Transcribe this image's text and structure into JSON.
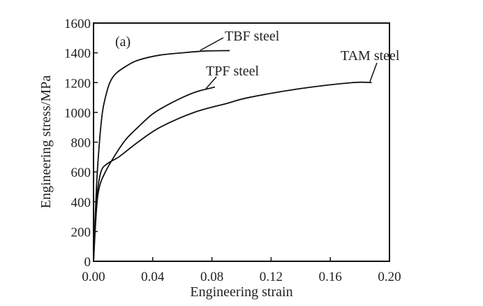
{
  "chart_data": {
    "type": "line",
    "panel_label": "(a)",
    "title": "",
    "xlabel": "Engineering strain",
    "ylabel": "Engineering stress/MPa",
    "xlim": [
      0,
      0.2
    ],
    "ylim": [
      0,
      1600
    ],
    "xticks": [
      "0.00",
      "0.04",
      "0.08",
      "0.12",
      "0.16",
      "0.20"
    ],
    "yticks": [
      "0",
      "200",
      "400",
      "600",
      "800",
      "1000",
      "1200",
      "1400",
      "1600"
    ],
    "grid": false,
    "series": [
      {
        "name": "TBF steel",
        "x": [
          0,
          0.002,
          0.004,
          0.006,
          0.008,
          0.011,
          0.015,
          0.022,
          0.03,
          0.045,
          0.06,
          0.075,
          0.092
        ],
        "y": [
          0,
          500,
          800,
          1000,
          1100,
          1200,
          1260,
          1310,
          1350,
          1385,
          1400,
          1412,
          1415
        ]
      },
      {
        "name": "TPF steel",
        "x": [
          0,
          0.002,
          0.004,
          0.008,
          0.015,
          0.022,
          0.03,
          0.04,
          0.05,
          0.06,
          0.07,
          0.082
        ],
        "y": [
          0,
          350,
          500,
          600,
          720,
          820,
          900,
          990,
          1050,
          1100,
          1140,
          1170
        ]
      },
      {
        "name": "TAM steel",
        "x": [
          0,
          0.002,
          0.005,
          0.01,
          0.017,
          0.03,
          0.045,
          0.068,
          0.09,
          0.105,
          0.14,
          0.175,
          0.188
        ],
        "y": [
          0,
          400,
          600,
          660,
          700,
          800,
          900,
          1000,
          1060,
          1100,
          1160,
          1200,
          1200
        ]
      }
    ]
  }
}
